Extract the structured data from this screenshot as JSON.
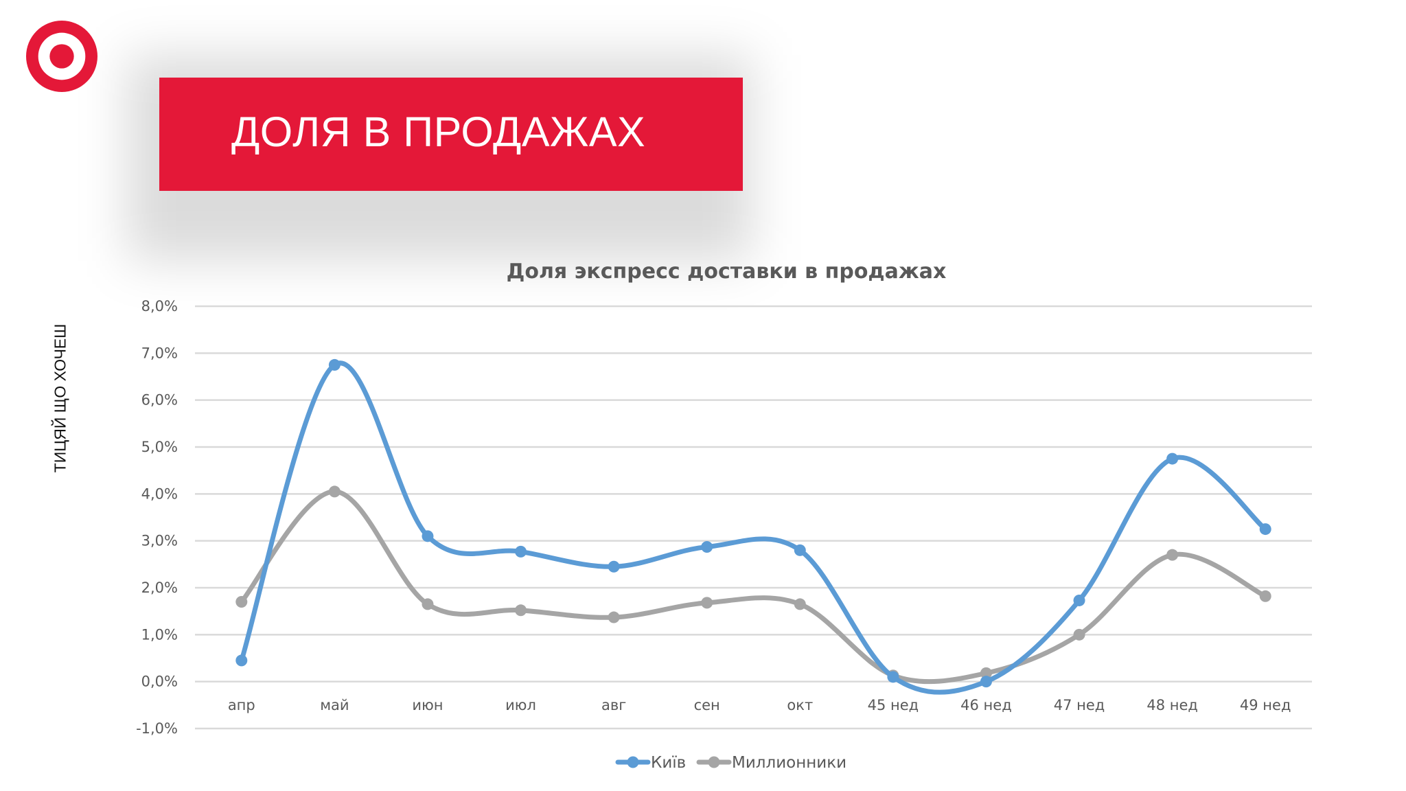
{
  "banner": {
    "title": "ДОЛЯ В ПРОДАЖАХ"
  },
  "side_label": "ТИЦЯЙ ЩО ХОЧЕШ",
  "colors": {
    "brand_red": "#e41838",
    "kyiv": "#5b9bd5",
    "millions": "#a5a5a5"
  },
  "chart_data": {
    "type": "line",
    "title": "Доля экспресс доставки в продажах",
    "categories": [
      "апр",
      "май",
      "июн",
      "июл",
      "авг",
      "сен",
      "окт",
      "45 нед",
      "46 нед",
      "47 нед",
      "48 нед",
      "49 нед"
    ],
    "y_ticks": [
      "-1,0%",
      "0,0%",
      "1,0%",
      "2,0%",
      "3,0%",
      "4,0%",
      "5,0%",
      "6,0%",
      "7,0%",
      "8,0%"
    ],
    "ylim": [
      -1,
      8
    ],
    "y_unit": "%",
    "grid": true,
    "smooth": true,
    "legend_position": "bottom",
    "series": [
      {
        "name": "Київ",
        "color": "#5b9bd5",
        "values": [
          0.45,
          6.75,
          3.1,
          2.77,
          2.45,
          2.87,
          2.8,
          0.1,
          0.0,
          1.73,
          4.75,
          3.25
        ]
      },
      {
        "name": "Миллионники",
        "color": "#a5a5a5",
        "values": [
          1.7,
          4.05,
          1.65,
          1.52,
          1.37,
          1.68,
          1.65,
          0.13,
          0.18,
          1.0,
          2.7,
          1.82
        ]
      }
    ]
  }
}
